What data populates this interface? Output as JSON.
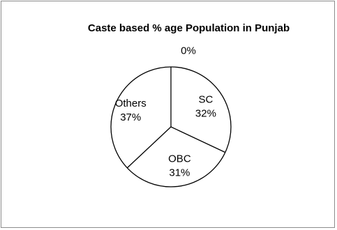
{
  "chart_data": {
    "type": "pie",
    "title": "Caste based % age Population in Punjab",
    "slices": [
      {
        "label": "SC",
        "value": 32,
        "value_label": "32%"
      },
      {
        "label": "OBC",
        "value": 31,
        "value_label": "31%"
      },
      {
        "label": "Others",
        "value": 37,
        "value_label": "37%"
      },
      {
        "label": "",
        "value": 0,
        "value_label": "0%"
      }
    ],
    "legend": "none",
    "colors": {
      "fill": "#ffffff",
      "stroke": "#000000",
      "border": "#8c8c8c"
    }
  }
}
